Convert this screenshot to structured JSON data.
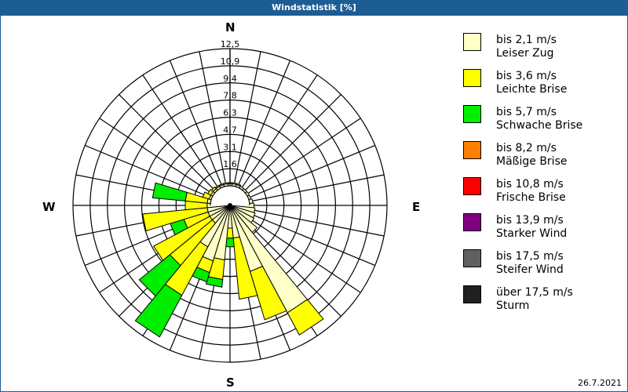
{
  "header": {
    "title": "Windstatistik [%]"
  },
  "compass": {
    "n": "N",
    "e": "E",
    "s": "S",
    "w": "W"
  },
  "footer": {
    "date": "26.7.2021"
  },
  "legend": [
    {
      "range": "bis 2,1 m/s",
      "label": "Leiser Zug",
      "color": "#ffffc8"
    },
    {
      "range": "bis 3,6 m/s",
      "label": "Leichte Brise",
      "color": "#ffff00"
    },
    {
      "range": "bis 5,7 m/s",
      "label": "Schwache Brise",
      "color": "#00ee00"
    },
    {
      "range": "bis 8,2 m/s",
      "label": "Mäßige Brise",
      "color": "#ff8000"
    },
    {
      "range": "bis 10,8 m/s",
      "label": "Frische Brise",
      "color": "#ff0000"
    },
    {
      "range": "bis 13,9 m/s",
      "label": "Starker Wind",
      "color": "#800080"
    },
    {
      "range": "bis 17,5 m/s",
      "label": "Steifer Wind",
      "color": "#606060"
    },
    {
      "range": "über 17,5 m/s",
      "label": "Sturm",
      "color": "#202020"
    }
  ],
  "chart_data": {
    "type": "wind-rose",
    "title": "Windstatistik [%]",
    "unit": "%",
    "ring_labels": [
      "1,6",
      "3,1",
      "4,7",
      "6,3",
      "7,8",
      "9,4",
      "10,9",
      "12,5"
    ],
    "rmax": 12.5,
    "sectors": 32,
    "direction_labels": [
      "N",
      "E",
      "S",
      "W"
    ],
    "series_names": [
      "bis 2,1 m/s",
      "bis 3,6 m/s",
      "bis 5,7 m/s"
    ],
    "directions_deg": [
      0,
      11.25,
      22.5,
      33.75,
      45,
      56.25,
      67.5,
      78.75,
      90,
      101.25,
      112.5,
      123.75,
      135,
      146.25,
      157.5,
      168.75,
      180,
      191.25,
      202.5,
      213.75,
      225,
      236.25,
      247.5,
      258.75,
      270,
      281.25,
      292.5,
      303.75,
      315,
      326.25,
      337.5,
      348.75
    ],
    "values": [
      [
        0.2,
        0.1,
        0.0
      ],
      [
        0.2,
        0.1,
        0.0
      ],
      [
        0.2,
        0.1,
        0.0
      ],
      [
        0.2,
        0.0,
        0.0
      ],
      [
        0.2,
        0.0,
        0.0
      ],
      [
        0.2,
        0.0,
        0.0
      ],
      [
        0.2,
        0.0,
        0.0
      ],
      [
        0.3,
        0.0,
        0.0
      ],
      [
        0.4,
        0.0,
        0.0
      ],
      [
        0.5,
        0.0,
        0.0
      ],
      [
        0.6,
        0.0,
        0.0
      ],
      [
        0.7,
        0.0,
        0.0
      ],
      [
        1.4,
        0.0,
        0.0
      ],
      [
        9.3,
        2.3,
        0.0
      ],
      [
        4.5,
        4.6,
        0.0
      ],
      [
        1.2,
        5.6,
        0.0
      ],
      [
        0.3,
        0.9,
        0.8
      ],
      [
        3.2,
        1.8,
        0.7
      ],
      [
        3.5,
        1.1,
        0.9
      ],
      [
        2.5,
        5.0,
        4.3
      ],
      [
        0.3,
        5.0,
        3.6
      ],
      [
        0.3,
        5.8,
        0.0
      ],
      [
        0.3,
        2.3,
        1.3
      ],
      [
        0.3,
        5.9,
        0.0
      ],
      [
        0.3,
        2.0,
        0.0
      ],
      [
        0.3,
        2.0,
        3.0
      ],
      [
        0.2,
        0.6,
        0.0
      ],
      [
        0.2,
        0.3,
        0.0
      ],
      [
        0.2,
        0.2,
        0.0
      ],
      [
        0.2,
        0.1,
        0.0
      ],
      [
        0.2,
        0.1,
        0.0
      ],
      [
        0.2,
        0.1,
        0.0
      ]
    ]
  }
}
